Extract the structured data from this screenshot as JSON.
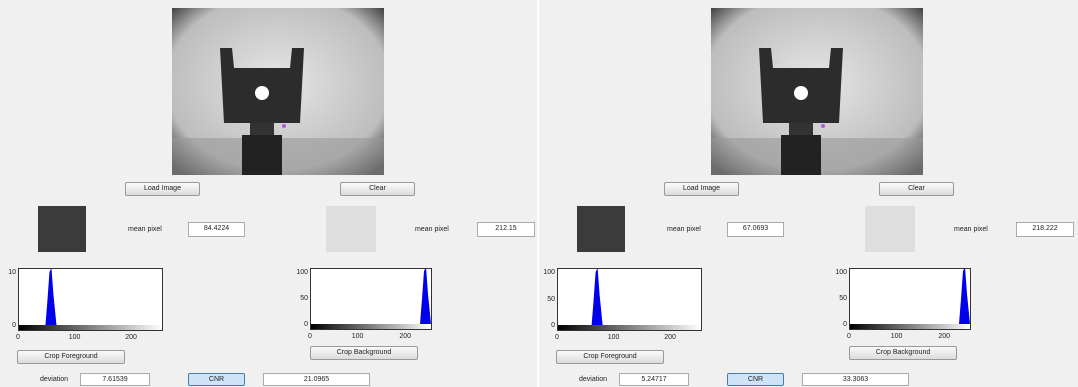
{
  "panels": [
    {
      "buttons": {
        "load": "Load Image",
        "clear": "Clear",
        "crop_foreground": "Crop Foreground",
        "crop_background": "Crop Background",
        "cnr": "CNR"
      },
      "foreground": {
        "label": "mean pixel",
        "value": "84.4224"
      },
      "background": {
        "label": "mean pixel",
        "value": "212.15"
      },
      "fg_hist": {
        "yticks": [
          "10",
          "0"
        ],
        "xticks": [
          "0",
          "100",
          "200"
        ]
      },
      "bg_hist": {
        "yticks": [
          "100",
          "50",
          "0"
        ],
        "xticks": [
          "0",
          "100",
          "200"
        ]
      },
      "deviation": {
        "label": "deviation",
        "value": "7.61539"
      },
      "cnr_value": "21.0965"
    },
    {
      "buttons": {
        "load": "Load Image",
        "clear": "Clear",
        "crop_foreground": "Crop Foreground",
        "crop_background": "Crop Background",
        "cnr": "CNR"
      },
      "foreground": {
        "label": "mean pixel",
        "value": "67.0693"
      },
      "background": {
        "label": "mean pixel",
        "value": "218.222"
      },
      "fg_hist": {
        "yticks": [
          "100",
          "50",
          "0"
        ],
        "xticks": [
          "0",
          "100",
          "200"
        ]
      },
      "bg_hist": {
        "yticks": [
          "100",
          "50",
          "0"
        ],
        "xticks": [
          "0",
          "100",
          "200"
        ]
      },
      "deviation": {
        "label": "deviation",
        "value": "5.24717"
      },
      "cnr_value": "33.3063"
    }
  ]
}
